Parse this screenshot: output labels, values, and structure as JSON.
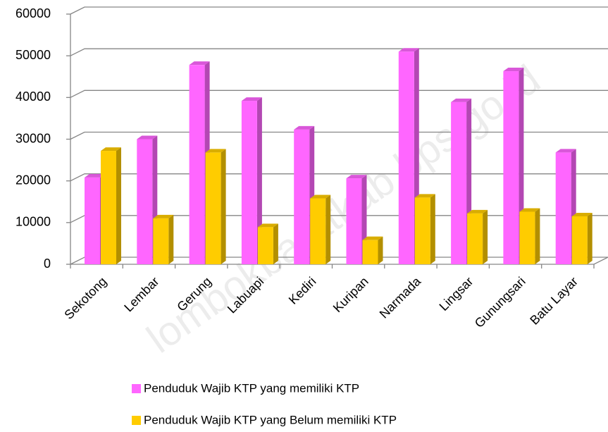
{
  "chart_data": {
    "type": "bar3d",
    "categories": [
      "Sekotong",
      "Lembar",
      "Gerung",
      "Labuapi",
      "Kediri",
      "Kuripan",
      "Narmada",
      "Lingsar",
      "Gunungsari",
      "Batu Layar"
    ],
    "series": [
      {
        "name": "Penduduk Wajib KTP yang memiliki KTP",
        "color": "#ff66ff",
        "values": [
          20800,
          30000,
          47800,
          39200,
          32300,
          20600,
          51000,
          38900,
          46300,
          26800
        ]
      },
      {
        "name": "Penduduk Wajib KTP yang Belum memiliki KTP",
        "color": "#ffcc00",
        "values": [
          27200,
          11000,
          26800,
          8900,
          15800,
          5800,
          16000,
          12200,
          12600,
          11500
        ]
      }
    ],
    "ylim": [
      0,
      60000
    ],
    "yticks": [
      0,
      10000,
      20000,
      30000,
      40000,
      50000,
      60000
    ],
    "grid": true,
    "legend": "bottom",
    "watermark": "lombokbaratkab.bps.go.id"
  }
}
